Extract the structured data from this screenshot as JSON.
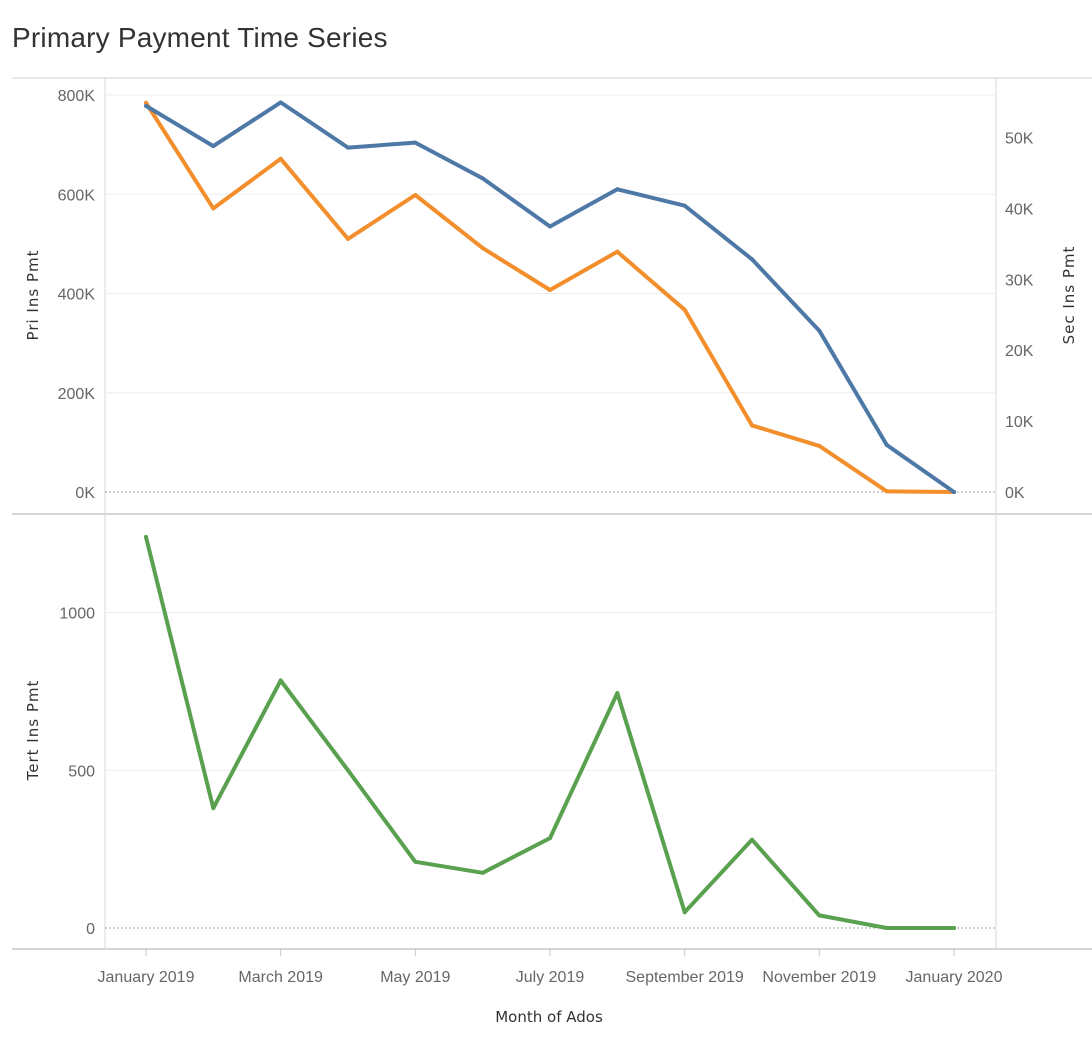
{
  "title": "Primary Payment Time Series",
  "colors": {
    "pri": "#4e79a7",
    "sec": "#f28e2b",
    "tert": "#59a14f"
  },
  "chart_data": [
    {
      "type": "line",
      "x": [
        "Jan 2019",
        "Feb 2019",
        "Mar 2019",
        "Apr 2019",
        "May 2019",
        "Jun 2019",
        "Jul 2019",
        "Aug 2019",
        "Sep 2019",
        "Oct 2019",
        "Nov 2019",
        "Dec 2019",
        "Jan 2020"
      ],
      "series": [
        {
          "axis": "left",
          "values": [
            778000,
            697000,
            785000,
            694000,
            704000,
            632000,
            535000,
            610000,
            577000,
            469000,
            325000,
            95000,
            0
          ]
        },
        {
          "axis": "right",
          "values": [
            54900,
            40000,
            47000,
            35700,
            41900,
            34400,
            28500,
            33900,
            25700,
            9400,
            6500,
            100,
            0
          ]
        }
      ],
      "ylabel": "Pri Ins Pmt",
      "ylabel_right": "Sec Ins Pmt",
      "ylim": [
        0,
        800000
      ],
      "ylim_right": [
        0,
        56000
      ],
      "yticks": [
        "0K",
        "200K",
        "400K",
        "600K",
        "800K"
      ],
      "yticks_right": [
        "0K",
        "10K",
        "20K",
        "30K",
        "40K",
        "50K"
      ]
    },
    {
      "type": "line",
      "x": [
        "Jan 2019",
        "Feb 2019",
        "Mar 2019",
        "Apr 2019",
        "May 2019",
        "Jun 2019",
        "Jul 2019",
        "Aug 2019",
        "Sep 2019",
        "Oct 2019",
        "Nov 2019",
        "Dec 2019",
        "Jan 2020"
      ],
      "series": [
        {
          "values": [
            1240,
            380,
            785,
            500,
            210,
            175,
            285,
            745,
            50,
            280,
            40,
            0,
            0
          ]
        }
      ],
      "ylabel": "Tert Ins Pmt",
      "ylim": [
        0,
        1240
      ],
      "yticks": [
        "0",
        "500",
        "1000"
      ]
    }
  ],
  "xaxis": {
    "title": "Month of Ados",
    "ticks": [
      "January 2019",
      "March 2019",
      "May 2019",
      "July 2019",
      "September 2019",
      "November 2019",
      "January 2020"
    ]
  }
}
